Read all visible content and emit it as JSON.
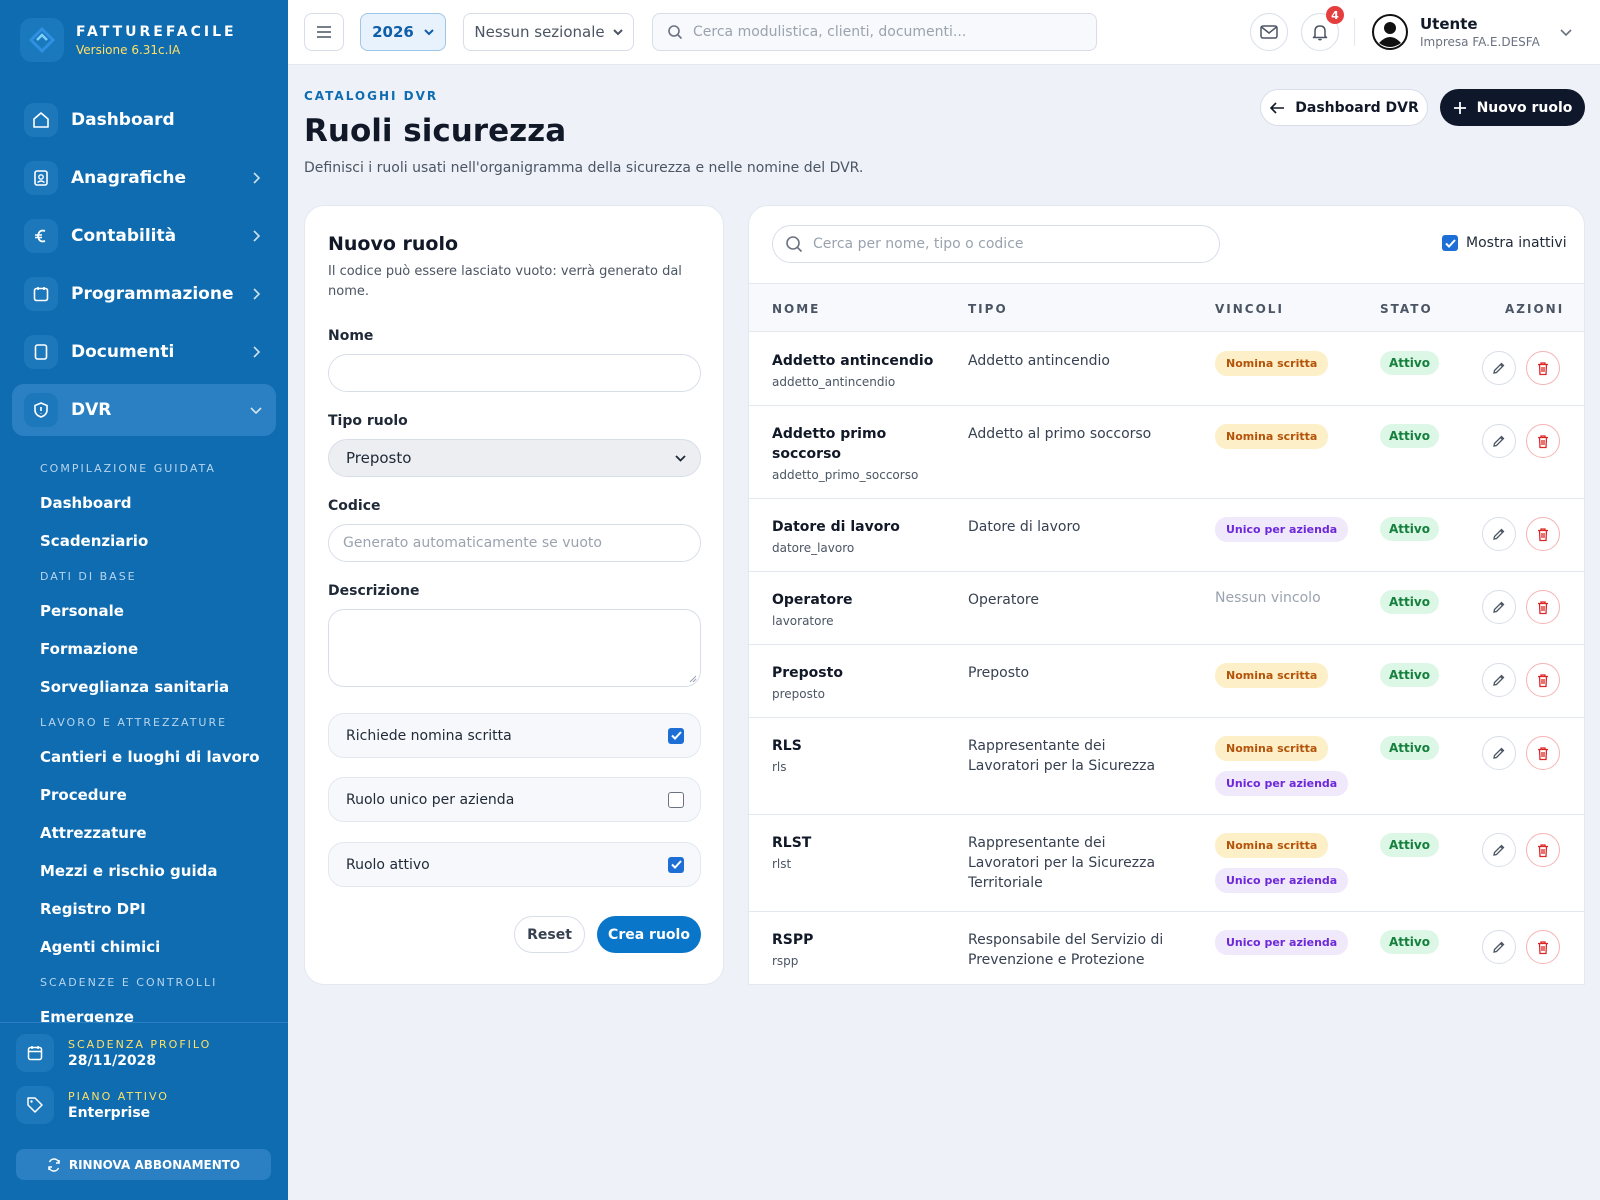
{
  "brand": {
    "name": "FATTUREFACILE",
    "version": "Versione 6.31c.IA"
  },
  "sidebar": {
    "main": [
      {
        "label": "Dashboard",
        "icon": "home-icon"
      },
      {
        "label": "Anagrafiche",
        "icon": "contacts-icon"
      },
      {
        "label": "Contabilità",
        "icon": "euro-icon"
      },
      {
        "label": "Programmazione",
        "icon": "calendar-icon"
      },
      {
        "label": "Documenti",
        "icon": "document-icon"
      },
      {
        "label": "DVR",
        "icon": "shield-icon"
      }
    ],
    "sections": [
      {
        "heading": "COMPILAZIONE GUIDATA",
        "items": [
          "Dashboard",
          "Scadenziario"
        ]
      },
      {
        "heading": "DATI DI BASE",
        "items": [
          "Personale",
          "Formazione",
          "Sorveglianza sanitaria"
        ]
      },
      {
        "heading": "LAVORO E ATTREZZATURE",
        "items": [
          "Cantieri e luoghi di lavoro",
          "Procedure",
          "Attrezzature",
          "Mezzi e rischio guida",
          "Registro DPI",
          "Agenti chimici"
        ]
      },
      {
        "heading": "SCADENZE E CONTROLLI",
        "items": [
          "Emergenze"
        ]
      }
    ],
    "footer": {
      "expiry_label": "SCADENZA PROFILO",
      "expiry_value": "28/11/2028",
      "plan_label": "PIANO ATTIVO",
      "plan_value": "Enterprise",
      "renew_label": "RINNOVA ABBONAMENTO"
    }
  },
  "topbar": {
    "year": "2026",
    "sezionale": "Nessun sezionale",
    "search_placeholder": "Cerca modulistica, clienti, documenti...",
    "notifications_count": "4",
    "user_name": "Utente",
    "user_company": "Impresa FA.E.DESFA"
  },
  "page": {
    "eyebrow": "CATALOGHI DVR",
    "title": "Ruoli sicurezza",
    "description": "Definisci i ruoli usati nell'organigramma della sicurezza e nelle nomine del DVR.",
    "back_button": "Dashboard DVR",
    "new_button": "Nuovo ruolo"
  },
  "form": {
    "title": "Nuovo ruolo",
    "subtitle": "Il codice può essere lasciato vuoto: verrà generato dal nome.",
    "name_label": "Nome",
    "name_value": "",
    "type_label": "Tipo ruolo",
    "type_value": "Preposto",
    "code_label": "Codice",
    "code_placeholder": "Generato automaticamente se vuoto",
    "desc_label": "Descrizione",
    "checks": [
      {
        "label": "Richiede nomina scritta",
        "checked": true
      },
      {
        "label": "Ruolo unico per azienda",
        "checked": false
      },
      {
        "label": "Ruolo attivo",
        "checked": true
      }
    ],
    "reset_label": "Reset",
    "create_label": "Crea ruolo"
  },
  "table": {
    "search_placeholder": "Cerca per nome, tipo o codice",
    "show_inactive_label": "Mostra inattivi",
    "show_inactive_checked": true,
    "headers": {
      "name": "NOME",
      "type": "TIPO",
      "constraints": "VINCOLI",
      "status": "STATO",
      "actions": "AZIONI"
    },
    "rows": [
      {
        "name": "Addetto antincendio",
        "code": "addetto_antincendio",
        "type": "Addetto antincendio",
        "badges": [
          "Nomina scritta"
        ],
        "status": "Attivo"
      },
      {
        "name": "Addetto primo soccorso",
        "code": "addetto_primo_soccorso",
        "type": "Addetto al primo soccorso",
        "badges": [
          "Nomina scritta"
        ],
        "status": "Attivo"
      },
      {
        "name": "Datore di lavoro",
        "code": "datore_lavoro",
        "type": "Datore di lavoro",
        "badges": [
          "Unico per azienda"
        ],
        "status": "Attivo"
      },
      {
        "name": "Operatore",
        "code": "lavoratore",
        "type": "Operatore",
        "badges": [],
        "none_label": "Nessun vincolo",
        "status": "Attivo"
      },
      {
        "name": "Preposto",
        "code": "preposto",
        "type": "Preposto",
        "badges": [
          "Nomina scritta"
        ],
        "status": "Attivo"
      },
      {
        "name": "RLS",
        "code": "rls",
        "type": "Rappresentante dei Lavoratori per la Sicurezza",
        "badges": [
          "Nomina scritta",
          "Unico per azienda"
        ],
        "status": "Attivo"
      },
      {
        "name": "RLST",
        "code": "rlst",
        "type": "Rappresentante dei Lavoratori per la Sicurezza Territoriale",
        "badges": [
          "Nomina scritta",
          "Unico per azienda"
        ],
        "status": "Attivo"
      },
      {
        "name": "RSPP",
        "code": "rspp",
        "type": "Responsabile del Servizio di Prevenzione e Protezione",
        "badges": [
          "Unico per azienda"
        ],
        "status": "Attivo"
      }
    ]
  },
  "colors": {
    "sidebar": "#0f6cb0",
    "accent": "#0a76c9",
    "dark_button": "#0f172a",
    "nomina_badge": "#fdf0c8",
    "unico_badge": "#efe9fb",
    "active_badge": "#dcf7e6"
  }
}
